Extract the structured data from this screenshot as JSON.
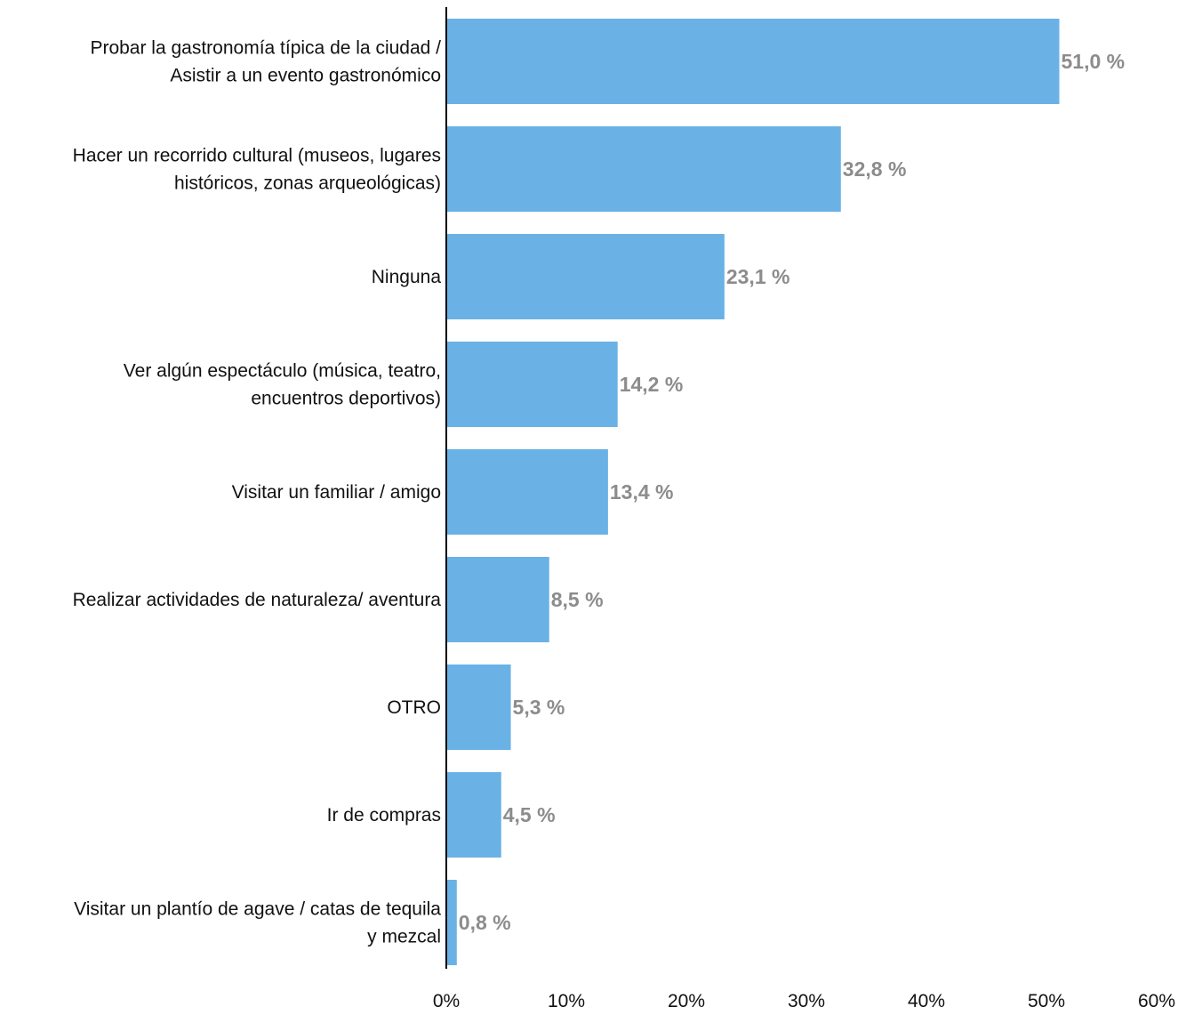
{
  "chart_data": {
    "type": "bar",
    "orientation": "horizontal",
    "categories": [
      [
        "Probar la gastronomía típica de la ciudad /",
        "Asistir a un evento gastronómico"
      ],
      [
        "Hacer un recorrido cultural (museos, lugares",
        "históricos, zonas arqueológicas)"
      ],
      [
        "Ninguna"
      ],
      [
        "Ver algún espectáculo (música, teatro,",
        "encuentros deportivos)"
      ],
      [
        "Visitar un familiar / amigo"
      ],
      [
        "Realizar actividades de naturaleza/ aventura"
      ],
      [
        "OTRO"
      ],
      [
        "Ir de compras"
      ],
      [
        "Visitar un plantío de agave / catas de tequila",
        "y mezcal"
      ]
    ],
    "values": [
      51.0,
      32.8,
      23.1,
      14.2,
      13.4,
      8.5,
      5.3,
      4.5,
      0.8
    ],
    "value_labels": [
      "51,0 %",
      "32,8 %",
      "23,1 %",
      "14,2 %",
      "13,4 %",
      "8,5 %",
      "5,3 %",
      "4,5 %",
      "0,8 %"
    ],
    "xlim": [
      0,
      60
    ],
    "ticks": [
      0,
      10,
      20,
      30,
      40,
      50,
      60
    ],
    "tick_labels": [
      "0%",
      "10%",
      "20%",
      "30%",
      "40%",
      "50%",
      "60%"
    ],
    "title": "",
    "xlabel": "",
    "ylabel": "",
    "grid": false,
    "legend": "none",
    "bar_color": "#6ab2e5",
    "value_label_color": "#8c8c8c",
    "axis_color": "#000000"
  }
}
